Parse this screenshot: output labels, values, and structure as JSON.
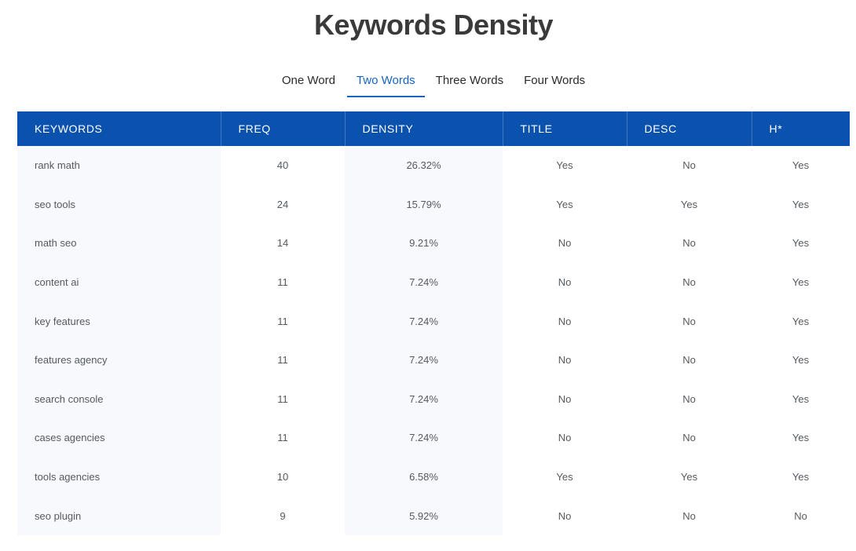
{
  "title": "Keywords Density",
  "tabs": [
    {
      "label": "One Word",
      "active": false
    },
    {
      "label": "Two Words",
      "active": true
    },
    {
      "label": "Three Words",
      "active": false
    },
    {
      "label": "Four Words",
      "active": false
    }
  ],
  "table": {
    "headers": [
      "KEYWORDS",
      "FREQ",
      "DENSITY",
      "TITLE",
      "DESC",
      "H*"
    ],
    "rows": [
      {
        "keyword": "rank math",
        "freq": "40",
        "density": "26.32%",
        "title": "Yes",
        "desc": "No",
        "h": "Yes"
      },
      {
        "keyword": "seo tools",
        "freq": "24",
        "density": "15.79%",
        "title": "Yes",
        "desc": "Yes",
        "h": "Yes"
      },
      {
        "keyword": "math seo",
        "freq": "14",
        "density": "9.21%",
        "title": "No",
        "desc": "No",
        "h": "Yes"
      },
      {
        "keyword": "content ai",
        "freq": "11",
        "density": "7.24%",
        "title": "No",
        "desc": "No",
        "h": "Yes"
      },
      {
        "keyword": "key features",
        "freq": "11",
        "density": "7.24%",
        "title": "No",
        "desc": "No",
        "h": "Yes"
      },
      {
        "keyword": "features agency",
        "freq": "11",
        "density": "7.24%",
        "title": "No",
        "desc": "No",
        "h": "Yes"
      },
      {
        "keyword": "search console",
        "freq": "11",
        "density": "7.24%",
        "title": "No",
        "desc": "No",
        "h": "Yes"
      },
      {
        "keyword": "cases agencies",
        "freq": "11",
        "density": "7.24%",
        "title": "No",
        "desc": "No",
        "h": "Yes"
      },
      {
        "keyword": "tools agencies",
        "freq": "10",
        "density": "6.58%",
        "title": "Yes",
        "desc": "Yes",
        "h": "Yes"
      },
      {
        "keyword": "seo plugin",
        "freq": "9",
        "density": "5.92%",
        "title": "No",
        "desc": "No",
        "h": "No"
      }
    ]
  },
  "colors": {
    "accent": "#1565c0",
    "header_bg": "#0a52ad",
    "title_text": "#3a3a3a"
  }
}
